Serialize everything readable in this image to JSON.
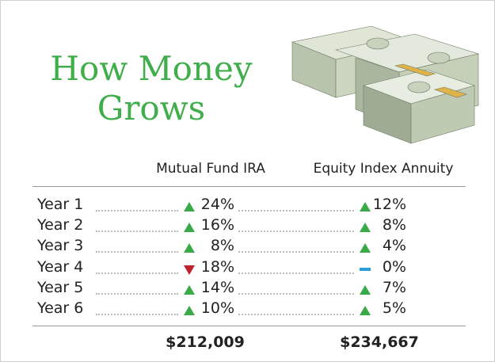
{
  "header": {
    "title_lines": [
      "How Money",
      "Grows"
    ]
  },
  "table": {
    "columns": [
      "Mutual Fund IRA",
      "Equity Index Annuity"
    ],
    "rows": [
      {
        "label": "Year 1",
        "cells": [
          {
            "value": "24%",
            "trend": "up"
          },
          {
            "value": "12%",
            "trend": "up"
          }
        ]
      },
      {
        "label": "Year 2",
        "cells": [
          {
            "value": "16%",
            "trend": "up"
          },
          {
            "value": "8%",
            "trend": "up"
          }
        ]
      },
      {
        "label": "Year 3",
        "cells": [
          {
            "value": "8%",
            "trend": "up"
          },
          {
            "value": "4%",
            "trend": "up"
          }
        ]
      },
      {
        "label": "Year 4",
        "cells": [
          {
            "value": "18%",
            "trend": "down"
          },
          {
            "value": "0%",
            "trend": "flat"
          }
        ]
      },
      {
        "label": "Year 5",
        "cells": [
          {
            "value": "14%",
            "trend": "up"
          },
          {
            "value": "7%",
            "trend": "up"
          }
        ]
      },
      {
        "label": "Year 6",
        "cells": [
          {
            "value": "10%",
            "trend": "up"
          },
          {
            "value": "5%",
            "trend": "up"
          }
        ]
      }
    ],
    "totals": [
      "$212,009",
      "$234,667"
    ]
  }
}
